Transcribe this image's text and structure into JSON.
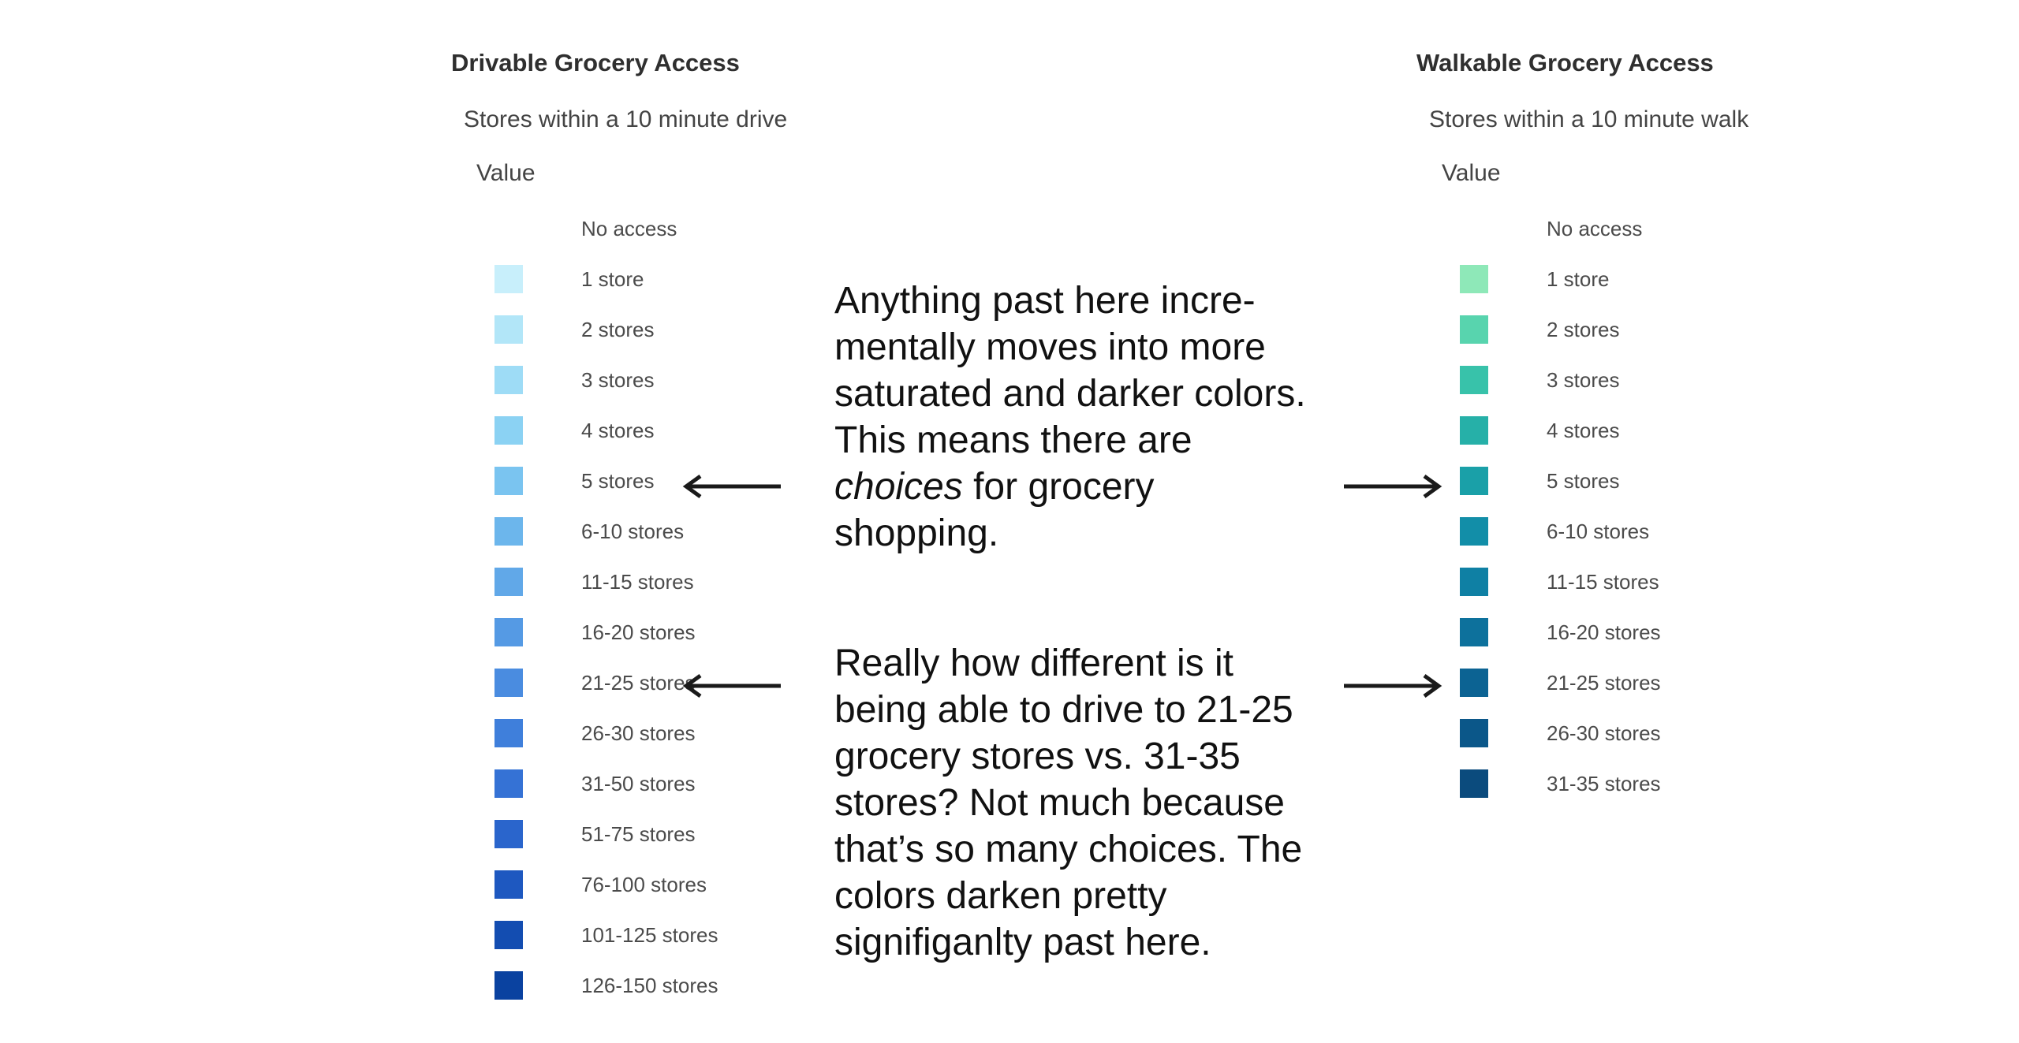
{
  "left_legend": {
    "title": "Drivable Grocery Access",
    "subtitle": "Stores within a 10 minute drive",
    "field": "Value",
    "items": [
      {
        "label": "No access",
        "color": null
      },
      {
        "label": "1 store",
        "color": "#c8effb"
      },
      {
        "label": "2 stores",
        "color": "#b2e6f8"
      },
      {
        "label": "3 stores",
        "color": "#9edcf6"
      },
      {
        "label": "4 stores",
        "color": "#8bd2f3"
      },
      {
        "label": "5 stores",
        "color": "#7ac4f0"
      },
      {
        "label": "6-10 stores",
        "color": "#6cb6ec"
      },
      {
        "label": "11-15 stores",
        "color": "#61a8e8"
      },
      {
        "label": "16-20 stores",
        "color": "#559ae4"
      },
      {
        "label": "21-25 stores",
        "color": "#4a8ce0"
      },
      {
        "label": "26-30 stores",
        "color": "#3f7fdb"
      },
      {
        "label": "31-50 stores",
        "color": "#3572d5"
      },
      {
        "label": "51-75 stores",
        "color": "#2a65cc"
      },
      {
        "label": "76-100 stores",
        "color": "#1e58c0"
      },
      {
        "label": "101-125 stores",
        "color": "#134db1"
      },
      {
        "label": "126-150 stores",
        "color": "#0a42a0"
      }
    ]
  },
  "right_legend": {
    "title": "Walkable Grocery Access",
    "subtitle": "Stores within a 10 minute walk",
    "field": "Value",
    "items": [
      {
        "label": "No access",
        "color": null
      },
      {
        "label": "1 store",
        "color": "#8ee8b8"
      },
      {
        "label": "2 stores",
        "color": "#58d4ae"
      },
      {
        "label": "3 stores",
        "color": "#38c2aa"
      },
      {
        "label": "4 stores",
        "color": "#26b0a8"
      },
      {
        "label": "5 stores",
        "color": "#1aa0a8"
      },
      {
        "label": "6-10 stores",
        "color": "#128ea8"
      },
      {
        "label": "11-15 stores",
        "color": "#0f80a4"
      },
      {
        "label": "16-20 stores",
        "color": "#0d719c"
      },
      {
        "label": "21-25 stores",
        "color": "#0c6393"
      },
      {
        "label": "26-30 stores",
        "color": "#0b5789"
      },
      {
        "label": "31-35 stores",
        "color": "#0b4b7d"
      }
    ]
  },
  "notes": {
    "first": {
      "before": "Anything past here incre-mentally moves into more saturated and darker colors.  This means there are ",
      "emphasis": "choices",
      "after": " for grocery shopping."
    },
    "second": "Really how different is it being able to drive to 21-25 grocery stores vs. 31-35 stores? Not much because that’s so many choices. The colors darken pretty signifiganlty past here."
  },
  "arrow_color": "#1a1a1a"
}
